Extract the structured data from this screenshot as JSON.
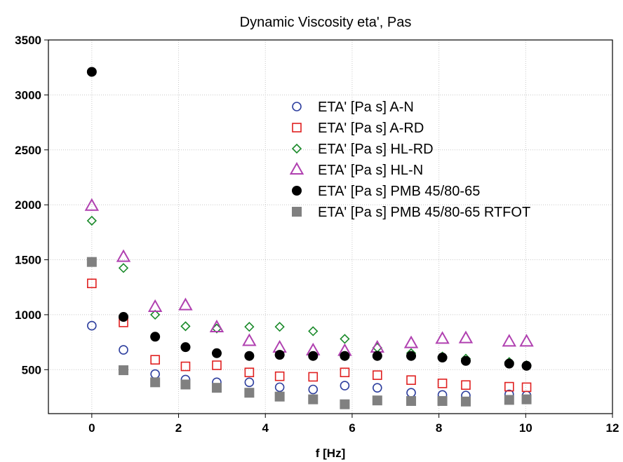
{
  "chart_data": {
    "type": "scatter",
    "title": "Dynamic Viscosity eta', Pas",
    "xlabel": "f [Hz]",
    "ylabel": "",
    "xlim": [
      -1,
      12
    ],
    "ylim": [
      100,
      3500
    ],
    "xticks": [
      0,
      2,
      4,
      6,
      8,
      10,
      12
    ],
    "yticks": [
      500,
      1000,
      1500,
      2000,
      2500,
      3000,
      3500
    ],
    "grid": true,
    "legend_position": "top-right",
    "series": [
      {
        "name": "ETA' [Pa s] A-N",
        "marker": "circle-open",
        "color": "#2e3f9e",
        "x": [
          0,
          0.73,
          1.46,
          2.16,
          2.88,
          3.63,
          4.33,
          5.1,
          5.83,
          6.58,
          7.36,
          8.08,
          8.62,
          9.62,
          10.02
        ],
        "y": [
          900,
          680,
          460,
          410,
          385,
          385,
          340,
          320,
          355,
          335,
          290,
          270,
          265,
          275,
          265
        ]
      },
      {
        "name": "ETA' [Pa s] A-RD",
        "marker": "square-open",
        "color": "#e02020",
        "x": [
          0,
          0.73,
          1.46,
          2.16,
          2.88,
          3.63,
          4.33,
          5.1,
          5.83,
          6.58,
          7.36,
          8.08,
          8.62,
          9.62,
          10.02
        ],
        "y": [
          1285,
          930,
          590,
          530,
          540,
          475,
          440,
          435,
          475,
          450,
          405,
          375,
          360,
          345,
          340
        ]
      },
      {
        "name": "ETA' [Pa s] HL-RD",
        "marker": "diamond-open",
        "color": "#1a8a2a",
        "x": [
          0,
          0.73,
          1.46,
          2.16,
          2.88,
          3.63,
          4.33,
          5.1,
          5.83,
          6.58,
          7.36,
          8.08,
          8.62,
          9.62,
          10.02
        ],
        "y": [
          1855,
          1425,
          1000,
          895,
          875,
          890,
          890,
          850,
          780,
          700,
          650,
          620,
          600,
          570,
          540
        ]
      },
      {
        "name": "ETA' [Pa s] HL-N",
        "marker": "triangle-open",
        "color": "#b040b0",
        "x": [
          0,
          0.73,
          1.46,
          2.16,
          2.88,
          3.63,
          4.33,
          5.1,
          5.83,
          6.58,
          7.36,
          8.08,
          8.62,
          9.62,
          10.02
        ],
        "y": [
          1990,
          1525,
          1070,
          1085,
          885,
          760,
          700,
          675,
          670,
          700,
          740,
          780,
          785,
          755,
          755
        ]
      },
      {
        "name": "ETA' [Pa s] PMB 45/80-65",
        "marker": "circle-filled",
        "color": "#000000",
        "x": [
          0,
          0.73,
          1.46,
          2.16,
          2.88,
          3.63,
          4.33,
          5.1,
          5.83,
          6.58,
          7.36,
          8.08,
          8.62,
          9.62,
          10.02
        ],
        "y": [
          3210,
          980,
          800,
          705,
          650,
          625,
          635,
          625,
          625,
          625,
          625,
          610,
          580,
          555,
          535
        ]
      },
      {
        "name": "ETA' [Pa s] PMB 45/80-65 RTFOT",
        "marker": "square-filled",
        "color": "#808080",
        "x": [
          0,
          0.73,
          1.46,
          2.16,
          2.88,
          3.63,
          4.33,
          5.1,
          5.83,
          6.58,
          7.36,
          8.08,
          8.62,
          9.62,
          10.02
        ],
        "y": [
          1480,
          495,
          385,
          365,
          335,
          290,
          255,
          230,
          185,
          220,
          215,
          215,
          210,
          225,
          230
        ]
      }
    ]
  }
}
